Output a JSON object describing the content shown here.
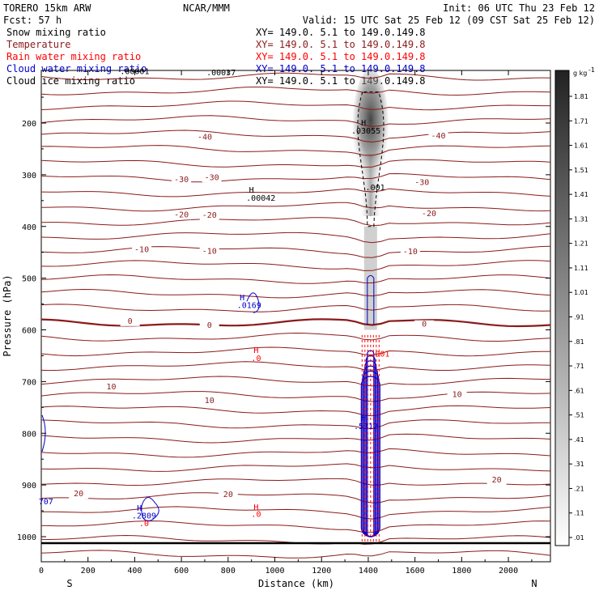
{
  "header": {
    "model": "TORERO  15km ARW",
    "center": "NCAR/MMM",
    "init": "Init: 06 UTC Thu 23 Feb 12",
    "fcst": "Fcst:    57 h",
    "valid": "Valid: 15 UTC Sat 25 Feb 12 (09 CST Sat 25 Feb 12)"
  },
  "colors": {
    "snow": "#000000",
    "temperature": "#8b1a1a",
    "rain": "#ff0000",
    "cloud_water": "#0000cc",
    "cloud_ice": "#000000"
  },
  "legend": [
    {
      "name": "Snow mixing ratio",
      "xy": "XY= 149.0.  5.1 to 149.0.149.8"
    },
    {
      "name": "Temperature",
      "xy": "XY= 149.0.  5.1 to 149.0.149.8"
    },
    {
      "name": "Rain water mixing ratio",
      "xy": "XY= 149.0.  5.1 to 149.0.149.8"
    },
    {
      "name": "Cloud water mixing ratio",
      "xy": "XY= 149.0.  5.1 to 149.0.149.8"
    },
    {
      "name": "Cloud ice mixing ratio",
      "xy": "XY= 149.0.  5.1 to 149.0.149.8"
    }
  ],
  "chart_data": {
    "type": "cross-section",
    "xlabel": "Distance (km)",
    "ylabel": "Pressure (hPa)",
    "xlim": [
      0,
      2180
    ],
    "ylim": [
      1050,
      100
    ],
    "x_ticks": [
      0,
      200,
      400,
      600,
      800,
      1000,
      1200,
      1400,
      1600,
      1800,
      2000
    ],
    "y_ticks": [
      200,
      300,
      400,
      500,
      600,
      700,
      800,
      900,
      1000
    ],
    "x_end_labels": {
      "left": "S",
      "right": "N"
    },
    "colorbar": {
      "unit": "g kg",
      "unit_exp": "-1",
      "ticks": [
        "1.81",
        "1.71",
        "1.61",
        "1.51",
        "1.41",
        "1.31",
        "1.21",
        "1.11",
        "1.01",
        ".91",
        ".81",
        ".71",
        ".61",
        ".51",
        ".41",
        ".31",
        ".21",
        ".11",
        ".01"
      ]
    },
    "isotherm_labels": [
      {
        "text": "-40",
        "x": 700,
        "p": 232
      },
      {
        "text": "-40",
        "x": 1700,
        "p": 230
      },
      {
        "text": "-30",
        "x": 600,
        "p": 314
      },
      {
        "text": "-30",
        "x": 730,
        "p": 310
      },
      {
        "text": "-30",
        "x": 1630,
        "p": 320
      },
      {
        "text": "-20",
        "x": 600,
        "p": 382
      },
      {
        "text": "-20",
        "x": 720,
        "p": 383
      },
      {
        "text": "-20",
        "x": 1660,
        "p": 380
      },
      {
        "text": "-10",
        "x": 430,
        "p": 450
      },
      {
        "text": "-10",
        "x": 720,
        "p": 453
      },
      {
        "text": "-10",
        "x": 1580,
        "p": 454
      },
      {
        "text": "0",
        "x": 380,
        "p": 588
      },
      {
        "text": "0",
        "x": 720,
        "p": 596
      },
      {
        "text": "0",
        "x": 1640,
        "p": 594
      },
      {
        "text": "10",
        "x": 300,
        "p": 715
      },
      {
        "text": "10",
        "x": 720,
        "p": 742
      },
      {
        "text": "10",
        "x": 1780,
        "p": 730
      },
      {
        "text": "20",
        "x": 160,
        "p": 922
      },
      {
        "text": "20",
        "x": 800,
        "p": 923
      },
      {
        "text": "20",
        "x": 1950,
        "p": 895
      }
    ],
    "annotations": [
      {
        "text": ".00001",
        "x": 400,
        "p": 105,
        "color": "black"
      },
      {
        "text": ".00037",
        "x": 770,
        "p": 108,
        "color": "black"
      },
      {
        "text": "H",
        "x": 1380,
        "p": 205,
        "color": "black"
      },
      {
        "text": ".03055",
        "x": 1390,
        "p": 220,
        "color": "black"
      },
      {
        "text": ".001",
        "x": 1430,
        "p": 330,
        "color": "black"
      },
      {
        "text": "H",
        "x": 900,
        "p": 335,
        "color": "black"
      },
      {
        "text": ".00042",
        "x": 940,
        "p": 350,
        "color": "black"
      },
      {
        "text": "H",
        "x": 860,
        "p": 543,
        "color": "blue"
      },
      {
        "text": ".0169",
        "x": 890,
        "p": 558,
        "color": "blue"
      },
      {
        "text": "H",
        "x": 920,
        "p": 645,
        "color": "red"
      },
      {
        "text": ".0",
        "x": 920,
        "p": 660,
        "color": "red"
      },
      {
        "text": ".001",
        "x": 1450,
        "p": 652,
        "color": "red"
      },
      {
        "text": "H",
        "x": 1380,
        "p": 775,
        "color": "blue"
      },
      {
        "text": ".5312",
        "x": 1390,
        "p": 792,
        "color": "blue"
      },
      {
        "text": "H",
        "x": 420,
        "p": 950,
        "color": "blue"
      },
      {
        "text": ".2809",
        "x": 440,
        "p": 965,
        "color": "blue"
      },
      {
        "text": ".0",
        "x": 440,
        "p": 980,
        "color": "red"
      },
      {
        "text": "H",
        "x": 920,
        "p": 948,
        "color": "red"
      },
      {
        "text": ".0",
        "x": 920,
        "p": 962,
        "color": "red"
      },
      {
        "text": "707",
        "x": 20,
        "p": 937,
        "color": "blue"
      }
    ]
  }
}
